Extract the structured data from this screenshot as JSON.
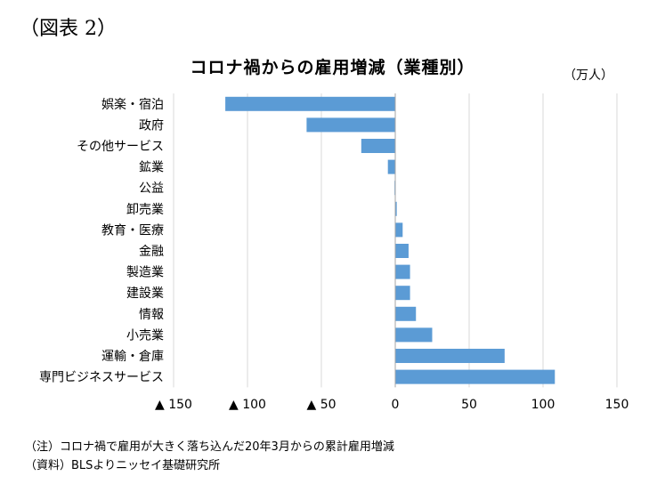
{
  "figure_label": "（図表 2）",
  "unit_label": "（万人）",
  "notes": [
    "（注）コロナ禍で雇用が大きく落ち込んだ20年3月からの累計雇用増減",
    "（資料）BLSよりニッセイ基礎研究所"
  ],
  "colors": {
    "bar": "#5b9bd5",
    "grid": "#d9d9d9"
  },
  "chart_data": {
    "type": "bar",
    "orientation": "horizontal",
    "title": "コロナ禍からの雇用増減（業種別）",
    "categories": [
      "娯楽・宿泊",
      "政府",
      "その他サービス",
      "鉱業",
      "公益",
      "卸売業",
      "教育・医療",
      "金融",
      "製造業",
      "建設業",
      "情報",
      "小売業",
      "運輸・倉庫",
      "専門ビジネスサービス"
    ],
    "values": [
      -115,
      -60,
      -23,
      -5,
      -0.5,
      1,
      5,
      9,
      10,
      10,
      14,
      25,
      74,
      108
    ],
    "xlim": [
      -150,
      150
    ],
    "ticks": [
      -150,
      -100,
      -50,
      0,
      50,
      100,
      150
    ],
    "tick_labels": [
      "▲ 150",
      "▲ 100",
      "▲ 50",
      "0",
      "50",
      "100",
      "150"
    ],
    "grid": true,
    "legend": "none"
  }
}
